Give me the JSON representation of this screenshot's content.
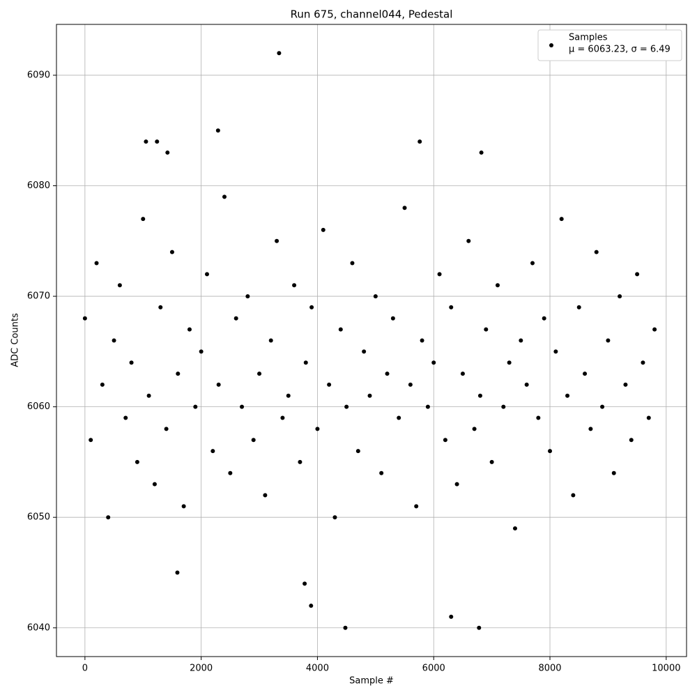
{
  "chart_data": {
    "type": "scatter",
    "title": "Run 675, channel044, Pedestal",
    "x_label": "Sample #",
    "y_label": "ADC Counts",
    "xlim": [
      -490,
      10350
    ],
    "ylim": [
      6037.4,
      6094.6
    ],
    "xticks": [
      0,
      2000,
      4000,
      6000,
      8000,
      10000
    ],
    "yticks": [
      6040,
      6050,
      6060,
      6070,
      6080,
      6090
    ],
    "grid": true,
    "legend": "upper right",
    "series": [
      {
        "name": "Samples",
        "label_line2": "μ = 6063.23, σ = 6.49",
        "color": "#000000",
        "x": [
          0,
          100,
          200,
          300,
          400,
          500,
          600,
          700,
          800,
          900,
          1000,
          1100,
          1200,
          1300,
          1400,
          1500,
          1600,
          1700,
          1800,
          1900,
          2000,
          2100,
          2200,
          2300,
          2400,
          2500,
          2600,
          2700,
          2800,
          2900,
          3000,
          3100,
          3200,
          3300,
          3400,
          3500,
          3600,
          3700,
          3800,
          3900,
          4000,
          4100,
          4200,
          4300,
          4400,
          4500,
          4600,
          4700,
          4800,
          4900,
          5000,
          5100,
          5200,
          5300,
          5400,
          5500,
          5600,
          5700,
          5800,
          5900,
          6000,
          6100,
          6200,
          6300,
          6400,
          6500,
          6600,
          6700,
          6800,
          6900,
          7000,
          7100,
          7200,
          7300,
          7400,
          7500,
          7600,
          7700,
          7800,
          7900,
          8000,
          8100,
          8200,
          8300,
          8400,
          8500,
          8600,
          8700,
          8800,
          8900,
          9000,
          9100,
          9200,
          9300,
          9400,
          9500,
          9600,
          9700,
          9800,
          1050,
          1240,
          1420,
          2290,
          3340,
          3780,
          3890,
          4480,
          6300,
          6780,
          6820,
          5760,
          1590
        ],
        "values": [
          6068,
          6057,
          6073,
          6062,
          6050,
          6066,
          6071,
          6059,
          6064,
          6055,
          6077,
          6061,
          6053,
          6069,
          6058,
          6074,
          6063,
          6051,
          6067,
          6060,
          6065,
          6072,
          6056,
          6062,
          6079,
          6054,
          6068,
          6060,
          6070,
          6057,
          6063,
          6052,
          6066,
          6075,
          6059,
          6061,
          6071,
          6055,
          6064,
          6069,
          6058,
          6076,
          6062,
          6050,
          6067,
          6060,
          6073,
          6056,
          6065,
          6061,
          6070,
          6054,
          6063,
          6068,
          6059,
          6078,
          6062,
          6051,
          6066,
          6060,
          6064,
          6072,
          6057,
          6069,
          6053,
          6063,
          6075,
          6058,
          6061,
          6067,
          6055,
          6071,
          6060,
          6064,
          6049,
          6066,
          6062,
          6073,
          6059,
          6068,
          6056,
          6065,
          6077,
          6061,
          6052,
          6069,
          6063,
          6058,
          6074,
          6060,
          6066,
          6054,
          6070,
          6062,
          6057,
          6072,
          6064,
          6059,
          6067,
          6084,
          6084,
          6083,
          6085,
          6092,
          6044,
          6042,
          6040,
          6041,
          6040,
          6083,
          6084,
          6045
        ]
      }
    ]
  }
}
